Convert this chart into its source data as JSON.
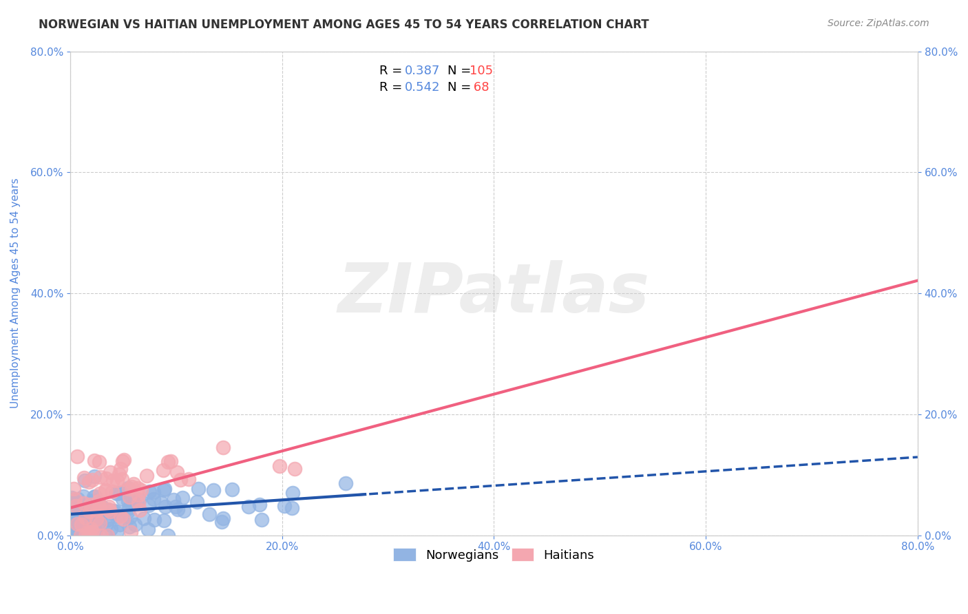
{
  "title": "NORWEGIAN VS HAITIAN UNEMPLOYMENT AMONG AGES 45 TO 54 YEARS CORRELATION CHART",
  "source": "Source: ZipAtlas.com",
  "ylabel": "Unemployment Among Ages 45 to 54 years",
  "xlabel": "",
  "xlim": [
    0.0,
    0.8
  ],
  "ylim": [
    0.0,
    0.8
  ],
  "xticks": [
    0.0,
    0.2,
    0.4,
    0.6,
    0.8
  ],
  "yticks": [
    0.0,
    0.2,
    0.4,
    0.6,
    0.8
  ],
  "norwegian_R": 0.387,
  "norwegian_N": 105,
  "haitian_R": 0.542,
  "haitian_N": 68,
  "norwegian_color": "#92B4E3",
  "haitian_color": "#F4A7B0",
  "norwegian_line_color": "#2255AA",
  "haitian_line_color": "#F06080",
  "watermark": "ZIPatlas",
  "watermark_color": "#CCCCCC",
  "background_color": "#FFFFFF",
  "grid_color": "#CCCCCC",
  "title_color": "#333333",
  "axis_label_color": "#5588DD",
  "tick_label_color": "#5588DD",
  "legend_R_color": "#5588DD",
  "legend_N_color": "#FF4444",
  "seed_norwegian": 42,
  "seed_haitian": 123
}
